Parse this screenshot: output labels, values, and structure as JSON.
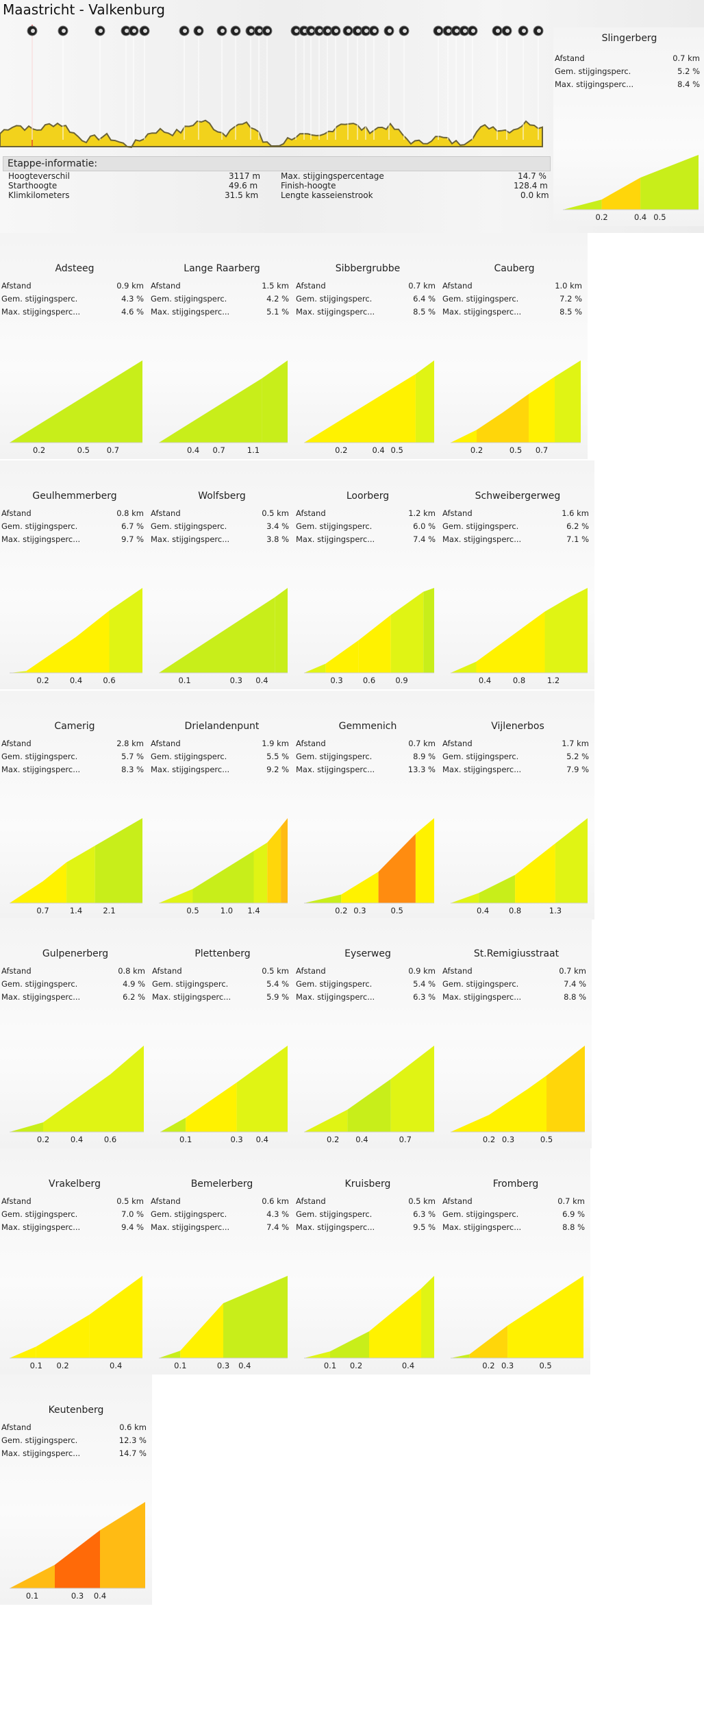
{
  "stage": {
    "title": "Maastricht - Valkenburg",
    "info_heading": "Etappe-informatie:",
    "info_left": [
      {
        "label": "Hoogteverschil",
        "value": "3117 m"
      },
      {
        "label": "Starthoogte",
        "value": "49.6 m"
      },
      {
        "label": "Klimkilometers",
        "value": "31.5 km"
      }
    ],
    "info_right": [
      {
        "label": "Max. stijgingspercentage",
        "value": "14.7 %"
      },
      {
        "label": "Finish-hoogte",
        "value": "128.4 m"
      },
      {
        "label": "Lengte kasseienstrook",
        "value": "0.0 km"
      }
    ]
  },
  "labels": {
    "distance": "Afstand",
    "avg": "Gem. stijgingsperc.",
    "max": "Max. stijgingsperc..."
  },
  "colors": {
    "green": "#c8ee1a",
    "lime": "#e0f414",
    "yellow": "#fff200",
    "gold": "#ffd60a",
    "amber": "#ffbb14",
    "orange": "#ff8c10",
    "deep_orange": "#ff6a08",
    "profile_fill": "#f2d21c",
    "marker_line": "#e03030"
  },
  "chart_data": [
    {
      "type": "area",
      "name": "Slingerberg",
      "distance": "0.7 km",
      "avg": "5.2 %",
      "max": "8.4 %",
      "ticks": [
        "0.2",
        "0.4",
        "0.5"
      ],
      "segments": [
        {
          "len": 0.2,
          "grade": 3.0,
          "color": "green"
        },
        {
          "len": 0.2,
          "grade": 6.5,
          "color": "gold"
        },
        {
          "len": 0.3,
          "grade": 4.5,
          "color": "green"
        }
      ]
    },
    {
      "type": "area",
      "name": "Adsteeg",
      "distance": "0.9 km",
      "avg": "4.3 %",
      "max": "4.6 %",
      "ticks": [
        "0.2",
        "0.5",
        "0.7"
      ],
      "segments": [
        {
          "len": 0.9,
          "grade": 4.3,
          "color": "green"
        }
      ]
    },
    {
      "type": "area",
      "name": "Lange Raarberg",
      "distance": "1.5 km",
      "avg": "4.2 %",
      "max": "5.1 %",
      "ticks": [
        "0.4",
        "0.7",
        "1.1"
      ],
      "segments": [
        {
          "len": 1.2,
          "grade": 4.0,
          "color": "green"
        },
        {
          "len": 0.3,
          "grade": 4.5,
          "color": "green"
        }
      ]
    },
    {
      "type": "area",
      "name": "Sibbergrubbe",
      "distance": "0.7 km",
      "avg": "6.4 %",
      "max": "8.5 %",
      "ticks": [
        "0.2",
        "0.4",
        "0.5"
      ],
      "segments": [
        {
          "len": 0.6,
          "grade": 6.3,
          "color": "yellow"
        },
        {
          "len": 0.1,
          "grade": 7.5,
          "color": "lime"
        }
      ]
    },
    {
      "type": "area",
      "name": "Cauberg",
      "distance": "1.0 km",
      "avg": "7.2 %",
      "max": "8.5 %",
      "ticks": [
        "0.2",
        "0.5",
        "0.7"
      ],
      "segments": [
        {
          "len": 0.2,
          "grade": 5.5,
          "color": "yellow"
        },
        {
          "len": 0.2,
          "grade": 7.5,
          "color": "gold"
        },
        {
          "len": 0.2,
          "grade": 8.0,
          "color": "gold"
        },
        {
          "len": 0.2,
          "grade": 7.5,
          "color": "yellow"
        },
        {
          "len": 0.2,
          "grade": 7.0,
          "color": "lime"
        }
      ]
    },
    {
      "type": "area",
      "name": "Geulhemmerberg",
      "distance": "0.8 km",
      "avg": "6.7 %",
      "max": "9.7 %",
      "ticks": [
        "0.2",
        "0.4",
        "0.6"
      ],
      "segments": [
        {
          "len": 0.1,
          "grade": 1.0,
          "color": "lime"
        },
        {
          "len": 0.3,
          "grade": 6.5,
          "color": "yellow"
        },
        {
          "len": 0.2,
          "grade": 7.5,
          "color": "yellow"
        },
        {
          "len": 0.2,
          "grade": 6.5,
          "color": "lime"
        }
      ]
    },
    {
      "type": "area",
      "name": "Wolfsberg",
      "distance": "0.5 km",
      "avg": "3.4 %",
      "max": "3.8 %",
      "ticks": [
        "0.1",
        "0.3",
        "0.4"
      ],
      "segments": [
        {
          "len": 0.45,
          "grade": 3.4,
          "color": "green"
        },
        {
          "len": 0.05,
          "grade": 3.8,
          "color": "green"
        }
      ]
    },
    {
      "type": "area",
      "name": "Loorberg",
      "distance": "1.2 km",
      "avg": "6.0 %",
      "max": "7.4 %",
      "ticks": [
        "0.3",
        "0.6",
        "0.9"
      ],
      "segments": [
        {
          "len": 0.2,
          "grade": 3.0,
          "color": "lime"
        },
        {
          "len": 0.3,
          "grade": 5.0,
          "color": "yellow"
        },
        {
          "len": 0.3,
          "grade": 5.5,
          "color": "yellow"
        },
        {
          "len": 0.3,
          "grade": 5.0,
          "color": "lime"
        },
        {
          "len": 0.1,
          "grade": 2.5,
          "color": "green"
        }
      ]
    },
    {
      "type": "area",
      "name": "Schweibergerweg",
      "distance": "1.6 km",
      "avg": "6.2 %",
      "max": "7.1 %",
      "ticks": [
        "0.4",
        "0.8",
        "1.2"
      ],
      "segments": [
        {
          "len": 0.3,
          "grade": 3.0,
          "color": "lime"
        },
        {
          "len": 0.8,
          "grade": 5.0,
          "color": "yellow"
        },
        {
          "len": 0.3,
          "grade": 4.0,
          "color": "lime"
        },
        {
          "len": 0.2,
          "grade": 3.5,
          "color": "lime"
        }
      ]
    },
    {
      "type": "area",
      "name": "Camerig",
      "distance": "2.8 km",
      "avg": "5.7 %",
      "max": "8.3 %",
      "ticks": [
        "0.7",
        "1.4",
        "2.1"
      ],
      "segments": [
        {
          "len": 0.7,
          "grade": 4.5,
          "color": "yellow"
        },
        {
          "len": 0.5,
          "grade": 5.5,
          "color": "yellow"
        },
        {
          "len": 0.6,
          "grade": 4.0,
          "color": "lime"
        },
        {
          "len": 1.0,
          "grade": 4.0,
          "color": "green"
        }
      ]
    },
    {
      "type": "area",
      "name": "Drielandenpunt",
      "distance": "1.9 km",
      "avg": "5.5 %",
      "max": "9.2 %",
      "ticks": [
        "0.5",
        "1.0",
        "1.4"
      ],
      "segments": [
        {
          "len": 0.5,
          "grade": 3.0,
          "color": "lime"
        },
        {
          "len": 0.9,
          "grade": 4.5,
          "color": "green"
        },
        {
          "len": 0.2,
          "grade": 4.5,
          "color": "lime"
        },
        {
          "len": 0.2,
          "grade": 8.5,
          "color": "gold"
        },
        {
          "len": 0.1,
          "grade": 9.0,
          "color": "amber"
        }
      ]
    },
    {
      "type": "area",
      "name": "Gemmenich",
      "distance": "0.7 km",
      "avg": "8.9 %",
      "max": "13.3 %",
      "ticks": [
        "0.2",
        "0.3",
        "0.5"
      ],
      "segments": [
        {
          "len": 0.2,
          "grade": 3.0,
          "color": "green"
        },
        {
          "len": 0.2,
          "grade": 8.0,
          "color": "yellow"
        },
        {
          "len": 0.2,
          "grade": 13.3,
          "color": "orange"
        },
        {
          "len": 0.1,
          "grade": 11.0,
          "color": "yellow"
        }
      ]
    },
    {
      "type": "area",
      "name": "Vijlenerbos",
      "distance": "1.7 km",
      "avg": "5.2 %",
      "max": "7.9 %",
      "ticks": [
        "0.4",
        "0.8",
        "1.3"
      ],
      "segments": [
        {
          "len": 0.35,
          "grade": 2.5,
          "color": "lime"
        },
        {
          "len": 0.45,
          "grade": 3.5,
          "color": "green"
        },
        {
          "len": 0.5,
          "grade": 5.5,
          "color": "yellow"
        },
        {
          "len": 0.4,
          "grade": 5.5,
          "color": "lime"
        }
      ]
    },
    {
      "type": "area",
      "name": "Gulpenerberg",
      "distance": "0.8 km",
      "avg": "4.9 %",
      "max": "6.2 %",
      "ticks": [
        "0.2",
        "0.4",
        "0.6"
      ],
      "segments": [
        {
          "len": 0.2,
          "grade": 2.0,
          "color": "green"
        },
        {
          "len": 0.4,
          "grade": 5.0,
          "color": "lime"
        },
        {
          "len": 0.2,
          "grade": 6.0,
          "color": "lime"
        }
      ]
    },
    {
      "type": "area",
      "name": "Plettenberg",
      "distance": "0.5 km",
      "avg": "5.4 %",
      "max": "5.9 %",
      "ticks": [
        "0.1",
        "0.3",
        "0.4"
      ],
      "segments": [
        {
          "len": 0.1,
          "grade": 4.5,
          "color": "green"
        },
        {
          "len": 0.2,
          "grade": 5.5,
          "color": "yellow"
        },
        {
          "len": 0.2,
          "grade": 5.8,
          "color": "lime"
        }
      ]
    },
    {
      "type": "area",
      "name": "Eyserweg",
      "distance": "0.9 km",
      "avg": "5.4 %",
      "max": "6.3 %",
      "ticks": [
        "0.2",
        "0.4",
        "0.7"
      ],
      "segments": [
        {
          "len": 0.3,
          "grade": 4.0,
          "color": "lime"
        },
        {
          "len": 0.3,
          "grade": 5.5,
          "color": "green"
        },
        {
          "len": 0.3,
          "grade": 6.0,
          "color": "lime"
        }
      ]
    },
    {
      "type": "area",
      "name": "St.Remigiusstraat",
      "distance": "0.7 km",
      "avg": "7.4 %",
      "max": "8.8 %",
      "ticks": [
        "0.2",
        "0.3",
        "0.5"
      ],
      "segments": [
        {
          "len": 0.2,
          "grade": 5.0,
          "color": "yellow"
        },
        {
          "len": 0.2,
          "grade": 7.5,
          "color": "yellow"
        },
        {
          "len": 0.1,
          "grade": 8.0,
          "color": "yellow"
        },
        {
          "len": 0.2,
          "grade": 8.8,
          "color": "gold"
        }
      ]
    },
    {
      "type": "area",
      "name": "Vrakelberg",
      "distance": "0.5 km",
      "avg": "7.0 %",
      "max": "9.4 %",
      "ticks": [
        "0.1",
        "0.2",
        "0.4"
      ],
      "segments": [
        {
          "len": 0.1,
          "grade": 5.0,
          "color": "yellow"
        },
        {
          "len": 0.2,
          "grade": 7.0,
          "color": "yellow"
        },
        {
          "len": 0.2,
          "grade": 8.5,
          "color": "yellow"
        }
      ]
    },
    {
      "type": "area",
      "name": "Bemelerberg",
      "distance": "0.6 km",
      "avg": "4.3 %",
      "max": "7.4 %",
      "ticks": [
        "0.1",
        "0.3",
        "0.4"
      ],
      "segments": [
        {
          "len": 0.1,
          "grade": 2.0,
          "color": "green"
        },
        {
          "len": 0.2,
          "grade": 6.5,
          "color": "yellow"
        },
        {
          "len": 0.3,
          "grade": 2.5,
          "color": "green"
        }
      ]
    },
    {
      "type": "area",
      "name": "Kruisberg",
      "distance": "0.5 km",
      "avg": "6.3 %",
      "max": "9.5 %",
      "ticks": [
        "0.1",
        "0.2",
        "0.4"
      ],
      "segments": [
        {
          "len": 0.1,
          "grade": 2.5,
          "color": "lime"
        },
        {
          "len": 0.15,
          "grade": 5.0,
          "color": "green"
        },
        {
          "len": 0.2,
          "grade": 8.0,
          "color": "yellow"
        },
        {
          "len": 0.05,
          "grade": 9.5,
          "color": "lime"
        }
      ]
    },
    {
      "type": "area",
      "name": "Fromberg",
      "distance": "0.7 km",
      "avg": "6.9 %",
      "max": "8.8 %",
      "ticks": [
        "0.2",
        "0.3",
        "0.5"
      ],
      "segments": [
        {
          "len": 0.1,
          "grade": 2.0,
          "color": "green"
        },
        {
          "len": 0.2,
          "grade": 7.5,
          "color": "gold"
        },
        {
          "len": 0.4,
          "grade": 6.5,
          "color": "yellow"
        }
      ]
    },
    {
      "type": "area",
      "name": "Keutenberg",
      "distance": "0.6 km",
      "avg": "12.3 %",
      "max": "14.7 %",
      "ticks": [
        "0.1",
        "0.3",
        "0.4"
      ],
      "segments": [
        {
          "len": 0.2,
          "grade": 10.0,
          "color": "amber"
        },
        {
          "len": 0.2,
          "grade": 14.7,
          "color": "deep_orange"
        },
        {
          "len": 0.2,
          "grade": 12.0,
          "color": "amber"
        }
      ]
    }
  ]
}
